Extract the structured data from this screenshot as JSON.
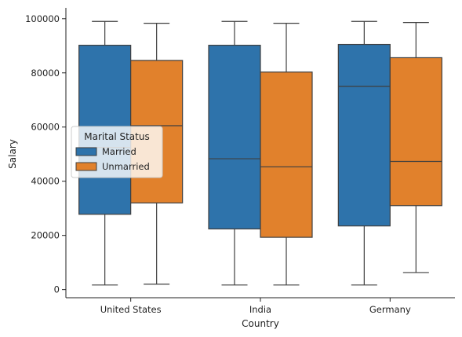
{
  "chart_data": {
    "type": "boxplot",
    "title": "",
    "xlabel": "Country",
    "ylabel": "Salary",
    "categories": [
      "United States",
      "India",
      "Germany"
    ],
    "ylim": [
      -3000,
      104000
    ],
    "yticks": [
      0,
      20000,
      40000,
      60000,
      80000,
      100000
    ],
    "ytick_labels": [
      "0",
      "20000",
      "40000",
      "60000",
      "80000",
      "100000"
    ],
    "grid": false,
    "legend": {
      "title": "Marital Status",
      "placement": "center-left"
    },
    "series": [
      {
        "name": "Married",
        "color": "#2e73ab",
        "boxes": [
          {
            "whislo": 1700,
            "q1": 27800,
            "med": 52500,
            "q3": 90200,
            "whishi": 99000
          },
          {
            "whislo": 1700,
            "q1": 22400,
            "med": 48300,
            "q3": 90200,
            "whishi": 99000
          },
          {
            "whislo": 1700,
            "q1": 23500,
            "med": 75000,
            "q3": 90500,
            "whishi": 99000
          }
        ]
      },
      {
        "name": "Unmarried",
        "color": "#e1812c",
        "boxes": [
          {
            "whislo": 2000,
            "q1": 32000,
            "med": 60500,
            "q3": 84600,
            "whishi": 98300
          },
          {
            "whislo": 1700,
            "q1": 19300,
            "med": 45300,
            "q3": 80300,
            "whishi": 98300
          },
          {
            "whislo": 6300,
            "q1": 31000,
            "med": 47300,
            "q3": 85600,
            "whishi": 98600
          }
        ]
      }
    ]
  }
}
